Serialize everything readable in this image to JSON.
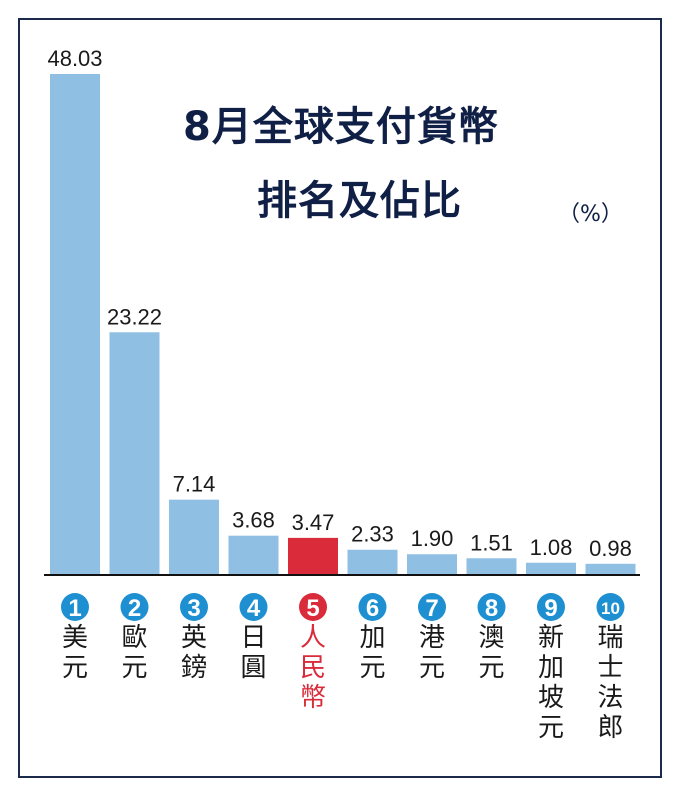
{
  "title_line1": "8月全球支付貨幣",
  "title_line2": "排名及佔比",
  "unit": "（%）",
  "colors": {
    "bar": "#8fbfe3",
    "highlight_bar": "#d92b3a",
    "badge": "#1e8fd1",
    "highlight_badge": "#d92b3a",
    "text": "#1a1a1a",
    "title": "#0f1f45"
  },
  "chart_data": {
    "type": "bar",
    "title": "8月全球支付貨幣排名及佔比",
    "ylabel": "%",
    "ylim": [
      0,
      48.03
    ],
    "grid": false,
    "categories": [
      "美元",
      "歐元",
      "英鎊",
      "日圓",
      "人民幣",
      "加元",
      "港元",
      "澳元",
      "新加坡元",
      "瑞士法郎"
    ],
    "ranks": [
      "1",
      "2",
      "3",
      "4",
      "5",
      "6",
      "7",
      "8",
      "9",
      "10"
    ],
    "values": [
      48.03,
      23.22,
      7.14,
      3.68,
      3.47,
      2.33,
      1.9,
      1.51,
      1.08,
      0.98
    ],
    "value_labels": [
      "48.03",
      "23.22",
      "7.14",
      "3.68",
      "3.47",
      "2.33",
      "1.90",
      "1.51",
      "1.08",
      "0.98"
    ],
    "highlight_index": 4
  }
}
